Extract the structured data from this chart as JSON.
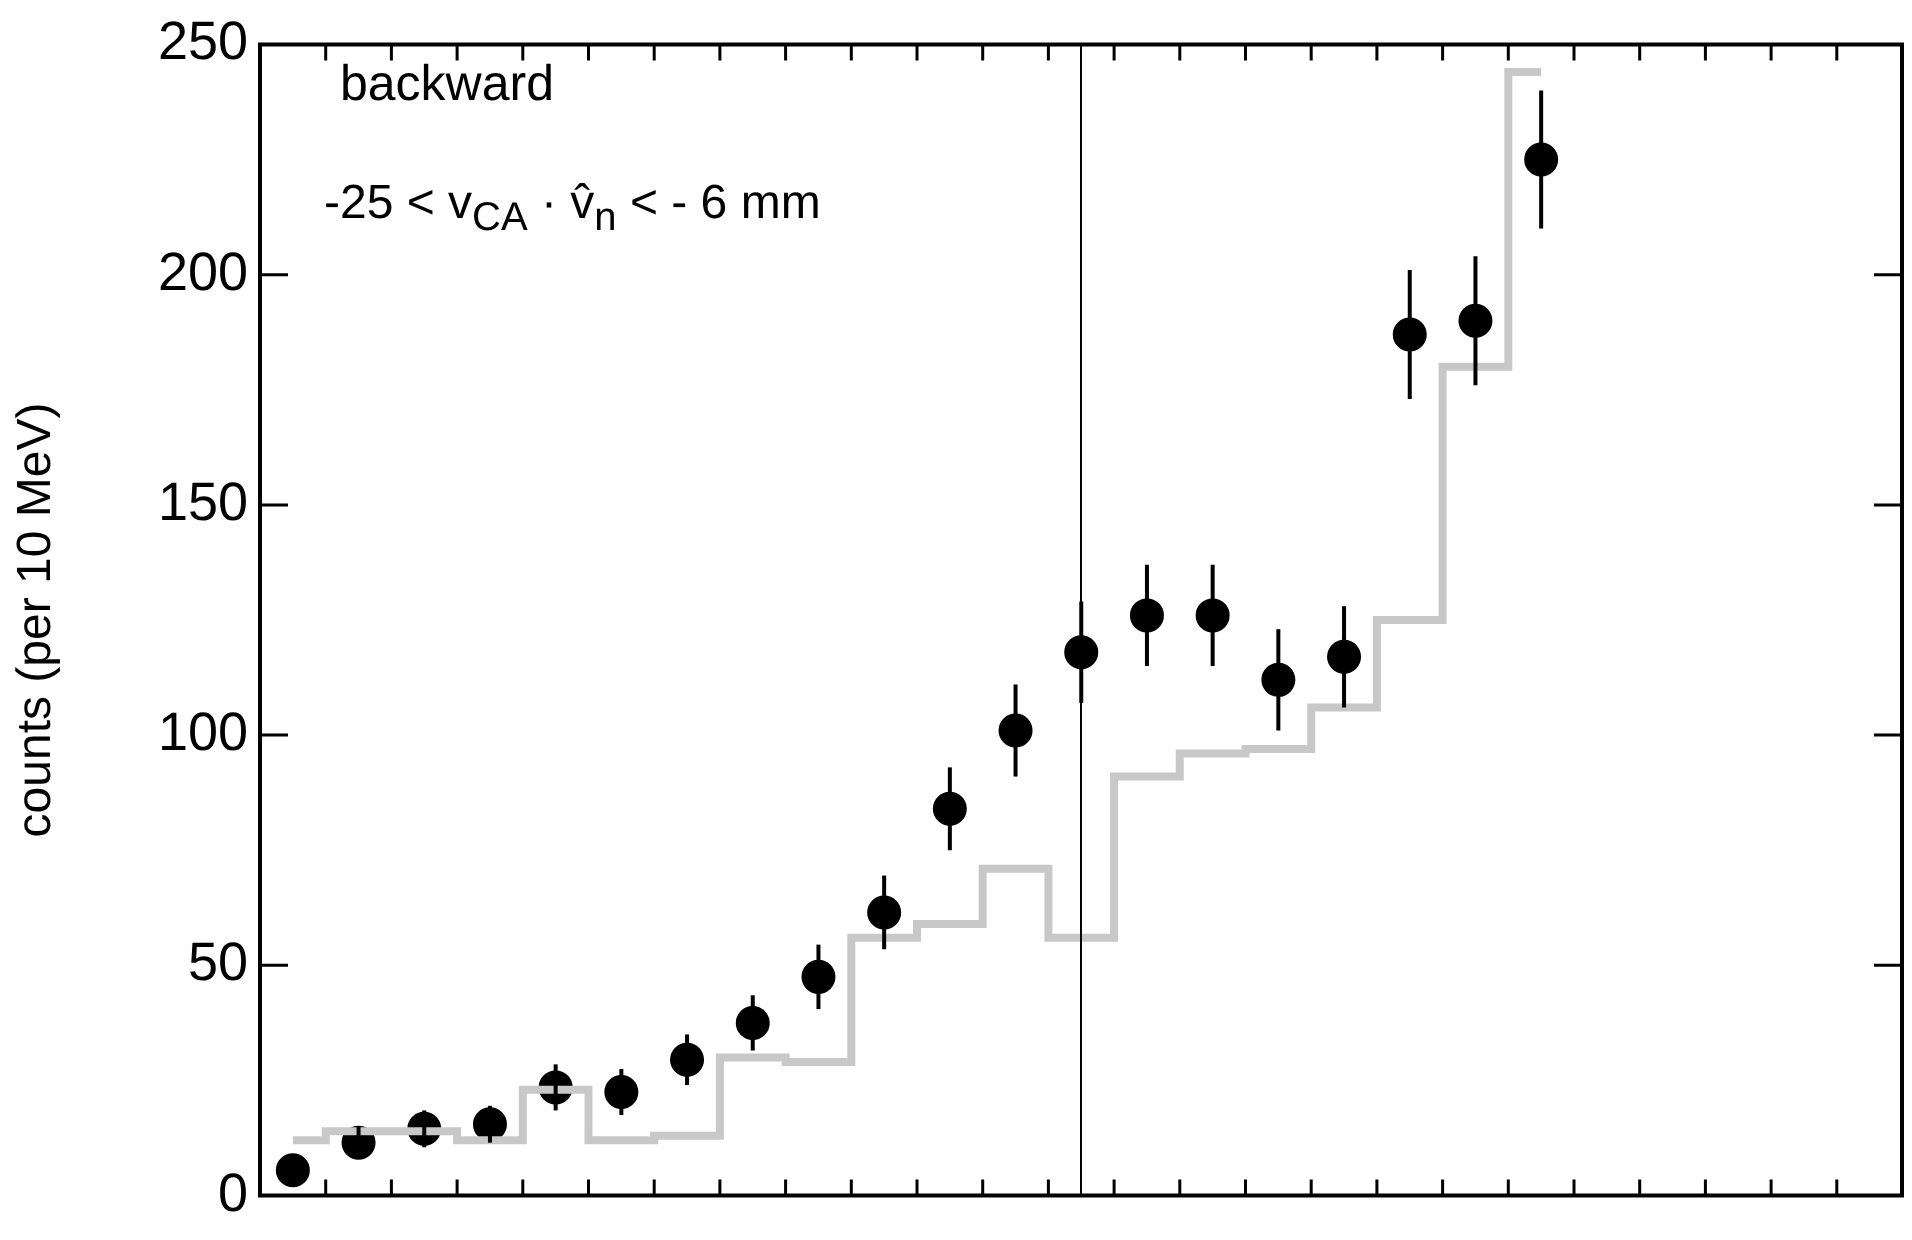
{
  "chart_data": {
    "type": "scatter",
    "ylabel": "counts (per 10 MeV)",
    "annotations": [
      "backward",
      "-25 < v$_{CA}$ · v̂$_{n}$ < - 6 mm"
    ],
    "categories": [
      null,
      null,
      null,
      null,
      null,
      null,
      null,
      null,
      null,
      null,
      null,
      null,
      null,
      null,
      null,
      null,
      null,
      null,
      null,
      null
    ],
    "ylim": [
      0,
      250
    ],
    "yticks": [
      0,
      50,
      100,
      150,
      200,
      250
    ],
    "tick_labels": "y",
    "grid": false,
    "legend": false,
    "series": [
      {
        "type": "step",
        "color": "#c8c8c8",
        "marker": "none",
        "values": [
          12,
          14,
          14,
          12,
          23,
          12,
          13,
          30,
          29,
          56,
          59,
          71,
          56,
          91,
          96,
          97,
          106,
          125,
          180,
          244
        ]
      },
      {
        "color": "#000000",
        "marker": "circle",
        "values": [
          5.5,
          11.5,
          14.5,
          15.5,
          23.5,
          22.5,
          29.5,
          37.5,
          47.5,
          61.5,
          84,
          101,
          118,
          126,
          126,
          112,
          117,
          187,
          190,
          225
        ],
        "errors": [
          2.5,
          3.5,
          4,
          4,
          5,
          5,
          5.5,
          6,
          7,
          8,
          9,
          10,
          11,
          11,
          11,
          11,
          11,
          14,
          14,
          15
        ]
      }
    ]
  }
}
